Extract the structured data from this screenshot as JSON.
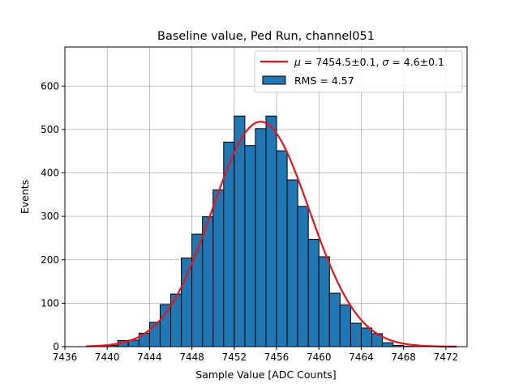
{
  "chart_data": {
    "type": "bar",
    "title": "Baseline value, Ped Run, channel051",
    "xlabel": "Sample Value [ADC Counts]",
    "ylabel": "Events",
    "xlim": [
      7436,
      7474
    ],
    "ylim": [
      0,
      690
    ],
    "xticks": [
      7436,
      7440,
      7444,
      7448,
      7452,
      7456,
      7460,
      7464,
      7468,
      7472
    ],
    "yticks": [
      0,
      100,
      200,
      300,
      400,
      500,
      600
    ],
    "grid": true,
    "legend_position": "top-right",
    "histogram": {
      "name": "RMS = 4.57",
      "bin_width": 1,
      "bin_edges_start": 7438,
      "counts": [
        0,
        1,
        3,
        14,
        15,
        31,
        56,
        97,
        121,
        204,
        259,
        299,
        361,
        471,
        531,
        463,
        502,
        531,
        451,
        384,
        323,
        247,
        207,
        123,
        96,
        54,
        43,
        30,
        9,
        3,
        1
      ],
      "color": "#1f77b4",
      "edgecolor": "#000000"
    },
    "fit": {
      "name_math_mu": "μ",
      "name_math_sigma": "σ",
      "name_text": " = 7454.5±0.1, ",
      "name_text2": " = 4.6±0.1",
      "mu": 7454.5,
      "sigma": 4.6,
      "amplitude": 518,
      "x_range": [
        7438,
        7473
      ],
      "color": "#e8141c"
    }
  }
}
